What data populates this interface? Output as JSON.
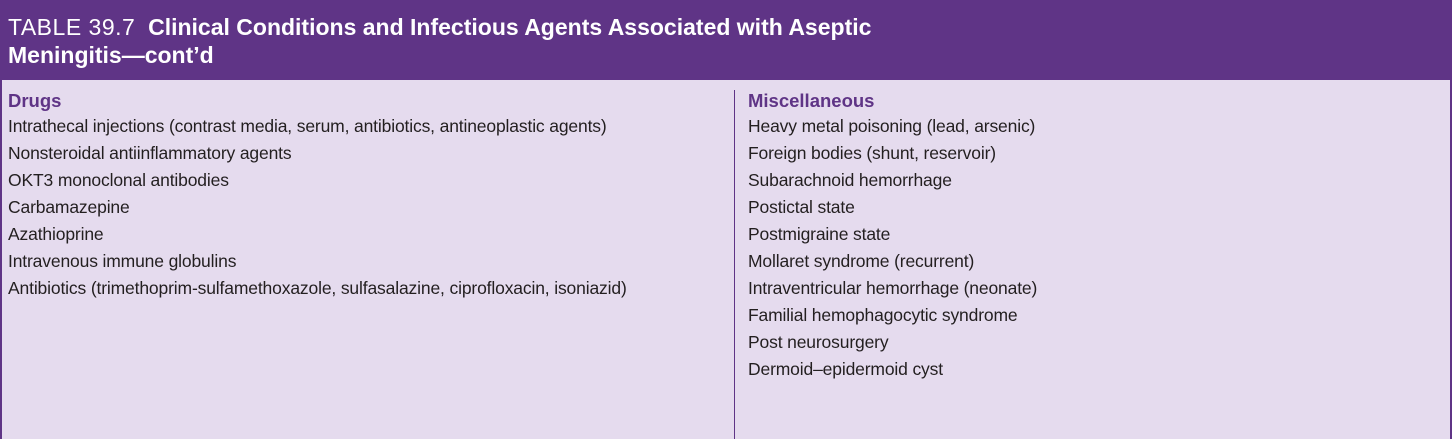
{
  "table": {
    "label": "TABLE 39.7",
    "title_line1": "Clinical Conditions and Infectious Agents Associated with Aseptic",
    "title_line2": "Meningitis—cont’d"
  },
  "columns": {
    "left": {
      "heading": "Drugs",
      "items": [
        "Intrathecal injections (contrast media, serum, antibiotics, antineoplastic agents)",
        "Nonsteroidal antiinflammatory agents",
        "OKT3 monoclonal antibodies",
        "Carbamazepine",
        "Azathioprine",
        "Intravenous immune globulins",
        "Antibiotics (trimethoprim-sulfamethoxazole, sulfasalazine, ciprofloxacin, isoniazid)"
      ]
    },
    "right": {
      "heading": "Miscellaneous",
      "items": [
        "Heavy metal poisoning (lead, arsenic)",
        "Foreign bodies (shunt, reservoir)",
        "Subarachnoid hemorrhage",
        "Postictal state",
        "Postmigraine state",
        "Mollaret syndrome (recurrent)",
        "Intraventricular hemorrhage (neonate)",
        "Familial hemophagocytic syndrome",
        "Post neurosurgery",
        "Dermoid–epidermoid cyst"
      ]
    }
  },
  "colors": {
    "header_bg": "#5f3486",
    "body_bg": "#e5dbee",
    "heading_text": "#5f3486"
  }
}
